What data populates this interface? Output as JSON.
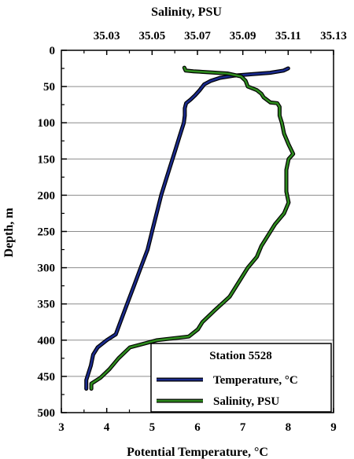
{
  "chart_data": {
    "type": "line",
    "title": "",
    "top_axis": {
      "label": "Salinity, PSU",
      "range": [
        35.01,
        35.13
      ],
      "ticks": [
        "35.03",
        "35.05",
        "35.07",
        "35.09",
        "35.11",
        "35.13"
      ],
      "tick_values": [
        35.03,
        35.05,
        35.07,
        35.09,
        35.11,
        35.13
      ]
    },
    "bottom_axis": {
      "label": "Potential Temperature, °C",
      "range": [
        3,
        9
      ],
      "ticks": [
        "3",
        "4",
        "5",
        "6",
        "7",
        "8",
        "9"
      ],
      "tick_values": [
        3,
        4,
        5,
        6,
        7,
        8,
        9
      ]
    },
    "y_axis": {
      "label": "Depth, m",
      "range": [
        0,
        500
      ],
      "inverted": true,
      "ticks": [
        "0",
        "50",
        "100",
        "150",
        "200",
        "250",
        "300",
        "350",
        "400",
        "450",
        "500"
      ],
      "tick_values": [
        0,
        50,
        100,
        150,
        200,
        250,
        300,
        350,
        400,
        450,
        500
      ]
    },
    "grid": true,
    "legend": {
      "title": "Station 5528",
      "position": "bottom-right"
    },
    "series": [
      {
        "name": "Temperature, °C",
        "axis": "bottom",
        "color": "#1a2a8c",
        "points": [
          [
            8.0,
            25
          ],
          [
            7.9,
            28
          ],
          [
            7.6,
            31
          ],
          [
            7.2,
            33
          ],
          [
            6.8,
            35
          ],
          [
            6.5,
            38
          ],
          [
            6.3,
            42
          ],
          [
            6.15,
            47
          ],
          [
            6.05,
            55
          ],
          [
            5.95,
            62
          ],
          [
            5.85,
            68
          ],
          [
            5.75,
            73
          ],
          [
            5.72,
            80
          ],
          [
            5.72,
            90
          ],
          [
            5.7,
            100
          ],
          [
            5.6,
            120
          ],
          [
            5.5,
            140
          ],
          [
            5.4,
            160
          ],
          [
            5.3,
            180
          ],
          [
            5.2,
            200
          ],
          [
            5.1,
            225
          ],
          [
            5.0,
            250
          ],
          [
            4.9,
            275
          ],
          [
            4.75,
            300
          ],
          [
            4.6,
            325
          ],
          [
            4.45,
            350
          ],
          [
            4.3,
            375
          ],
          [
            4.2,
            392
          ],
          [
            4.0,
            400
          ],
          [
            3.8,
            410
          ],
          [
            3.7,
            420
          ],
          [
            3.65,
            435
          ],
          [
            3.6,
            445
          ],
          [
            3.55,
            455
          ],
          [
            3.55,
            467
          ]
        ]
      },
      {
        "name": "Salinity, PSU",
        "axis": "top",
        "color": "#2e8b1e",
        "points": [
          [
            35.0642,
            24
          ],
          [
            35.0648,
            28
          ],
          [
            35.0682,
            29
          ],
          [
            35.0832,
            32
          ],
          [
            35.0892,
            36
          ],
          [
            35.0912,
            42
          ],
          [
            35.0922,
            50
          ],
          [
            35.0962,
            55
          ],
          [
            35.0982,
            60
          ],
          [
            35.0992,
            65
          ],
          [
            35.1022,
            72
          ],
          [
            35.1052,
            73
          ],
          [
            35.1062,
            78
          ],
          [
            35.1062,
            90
          ],
          [
            35.1072,
            100
          ],
          [
            35.1082,
            115
          ],
          [
            35.1102,
            130
          ],
          [
            35.1122,
            143
          ],
          [
            35.1102,
            150
          ],
          [
            35.1092,
            165
          ],
          [
            35.1092,
            180
          ],
          [
            35.1092,
            195
          ],
          [
            35.1102,
            210
          ],
          [
            35.1082,
            225
          ],
          [
            35.1042,
            240
          ],
          [
            35.1012,
            255
          ],
          [
            35.0982,
            270
          ],
          [
            35.0962,
            285
          ],
          [
            35.0922,
            300
          ],
          [
            35.0882,
            320
          ],
          [
            35.0842,
            340
          ],
          [
            35.0772,
            360
          ],
          [
            35.0722,
            375
          ],
          [
            35.0702,
            385
          ],
          [
            35.0662,
            395
          ],
          [
            35.0522,
            400
          ],
          [
            35.0402,
            410
          ],
          [
            35.0352,
            425
          ],
          [
            35.0312,
            440
          ],
          [
            35.0272,
            452
          ],
          [
            35.0232,
            460
          ],
          [
            35.0232,
            467
          ]
        ]
      }
    ]
  }
}
